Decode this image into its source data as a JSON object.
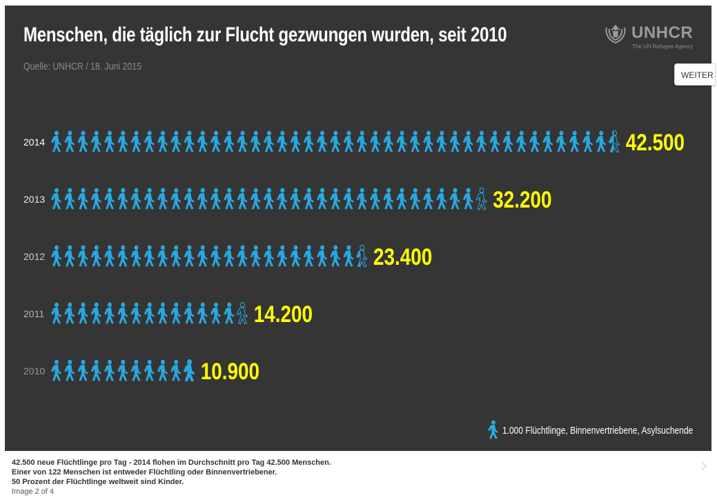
{
  "header": {
    "title": "Menschen, die täglich zur Flucht gezwungen wurden, seit 2010",
    "source": "Quelle: UNHCR / 18. Juni 2015"
  },
  "logo": {
    "name": "UNHCR",
    "tagline": "The UN Refugee Agency"
  },
  "nav": {
    "next_label": "WEITER"
  },
  "chart_data": {
    "type": "bar",
    "unit_per_icon": 1000,
    "categories": [
      "2014",
      "2013",
      "2012",
      "2011",
      "2010"
    ],
    "values": [
      42500,
      32200,
      23400,
      14200,
      10900
    ],
    "value_labels": [
      "42.500",
      "32.200",
      "23.400",
      "14.200",
      "10.900"
    ],
    "legend": "1.000 Flüchtlinge, Binnenvertriebene, Asylsuchende",
    "colors": {
      "icon": "#29a8e0",
      "value": "#ffff00",
      "background": "#353535",
      "year_labels": [
        "#ffffff",
        "#ececec",
        "#cfcfcf",
        "#b4b4b4",
        "#999999"
      ]
    }
  },
  "caption": {
    "lines": [
      "42.500 neue Flüchtlinge pro Tag - 2014 flohen im Durchschnitt pro Tag 42.500 Menschen.",
      "Einer von 122 Menschen ist entweder Flüchtling oder Binnenvertriebener.",
      "50 Prozent der Flüchtlinge weltweit sind Kinder."
    ],
    "counter": "Image 2 of 4"
  }
}
